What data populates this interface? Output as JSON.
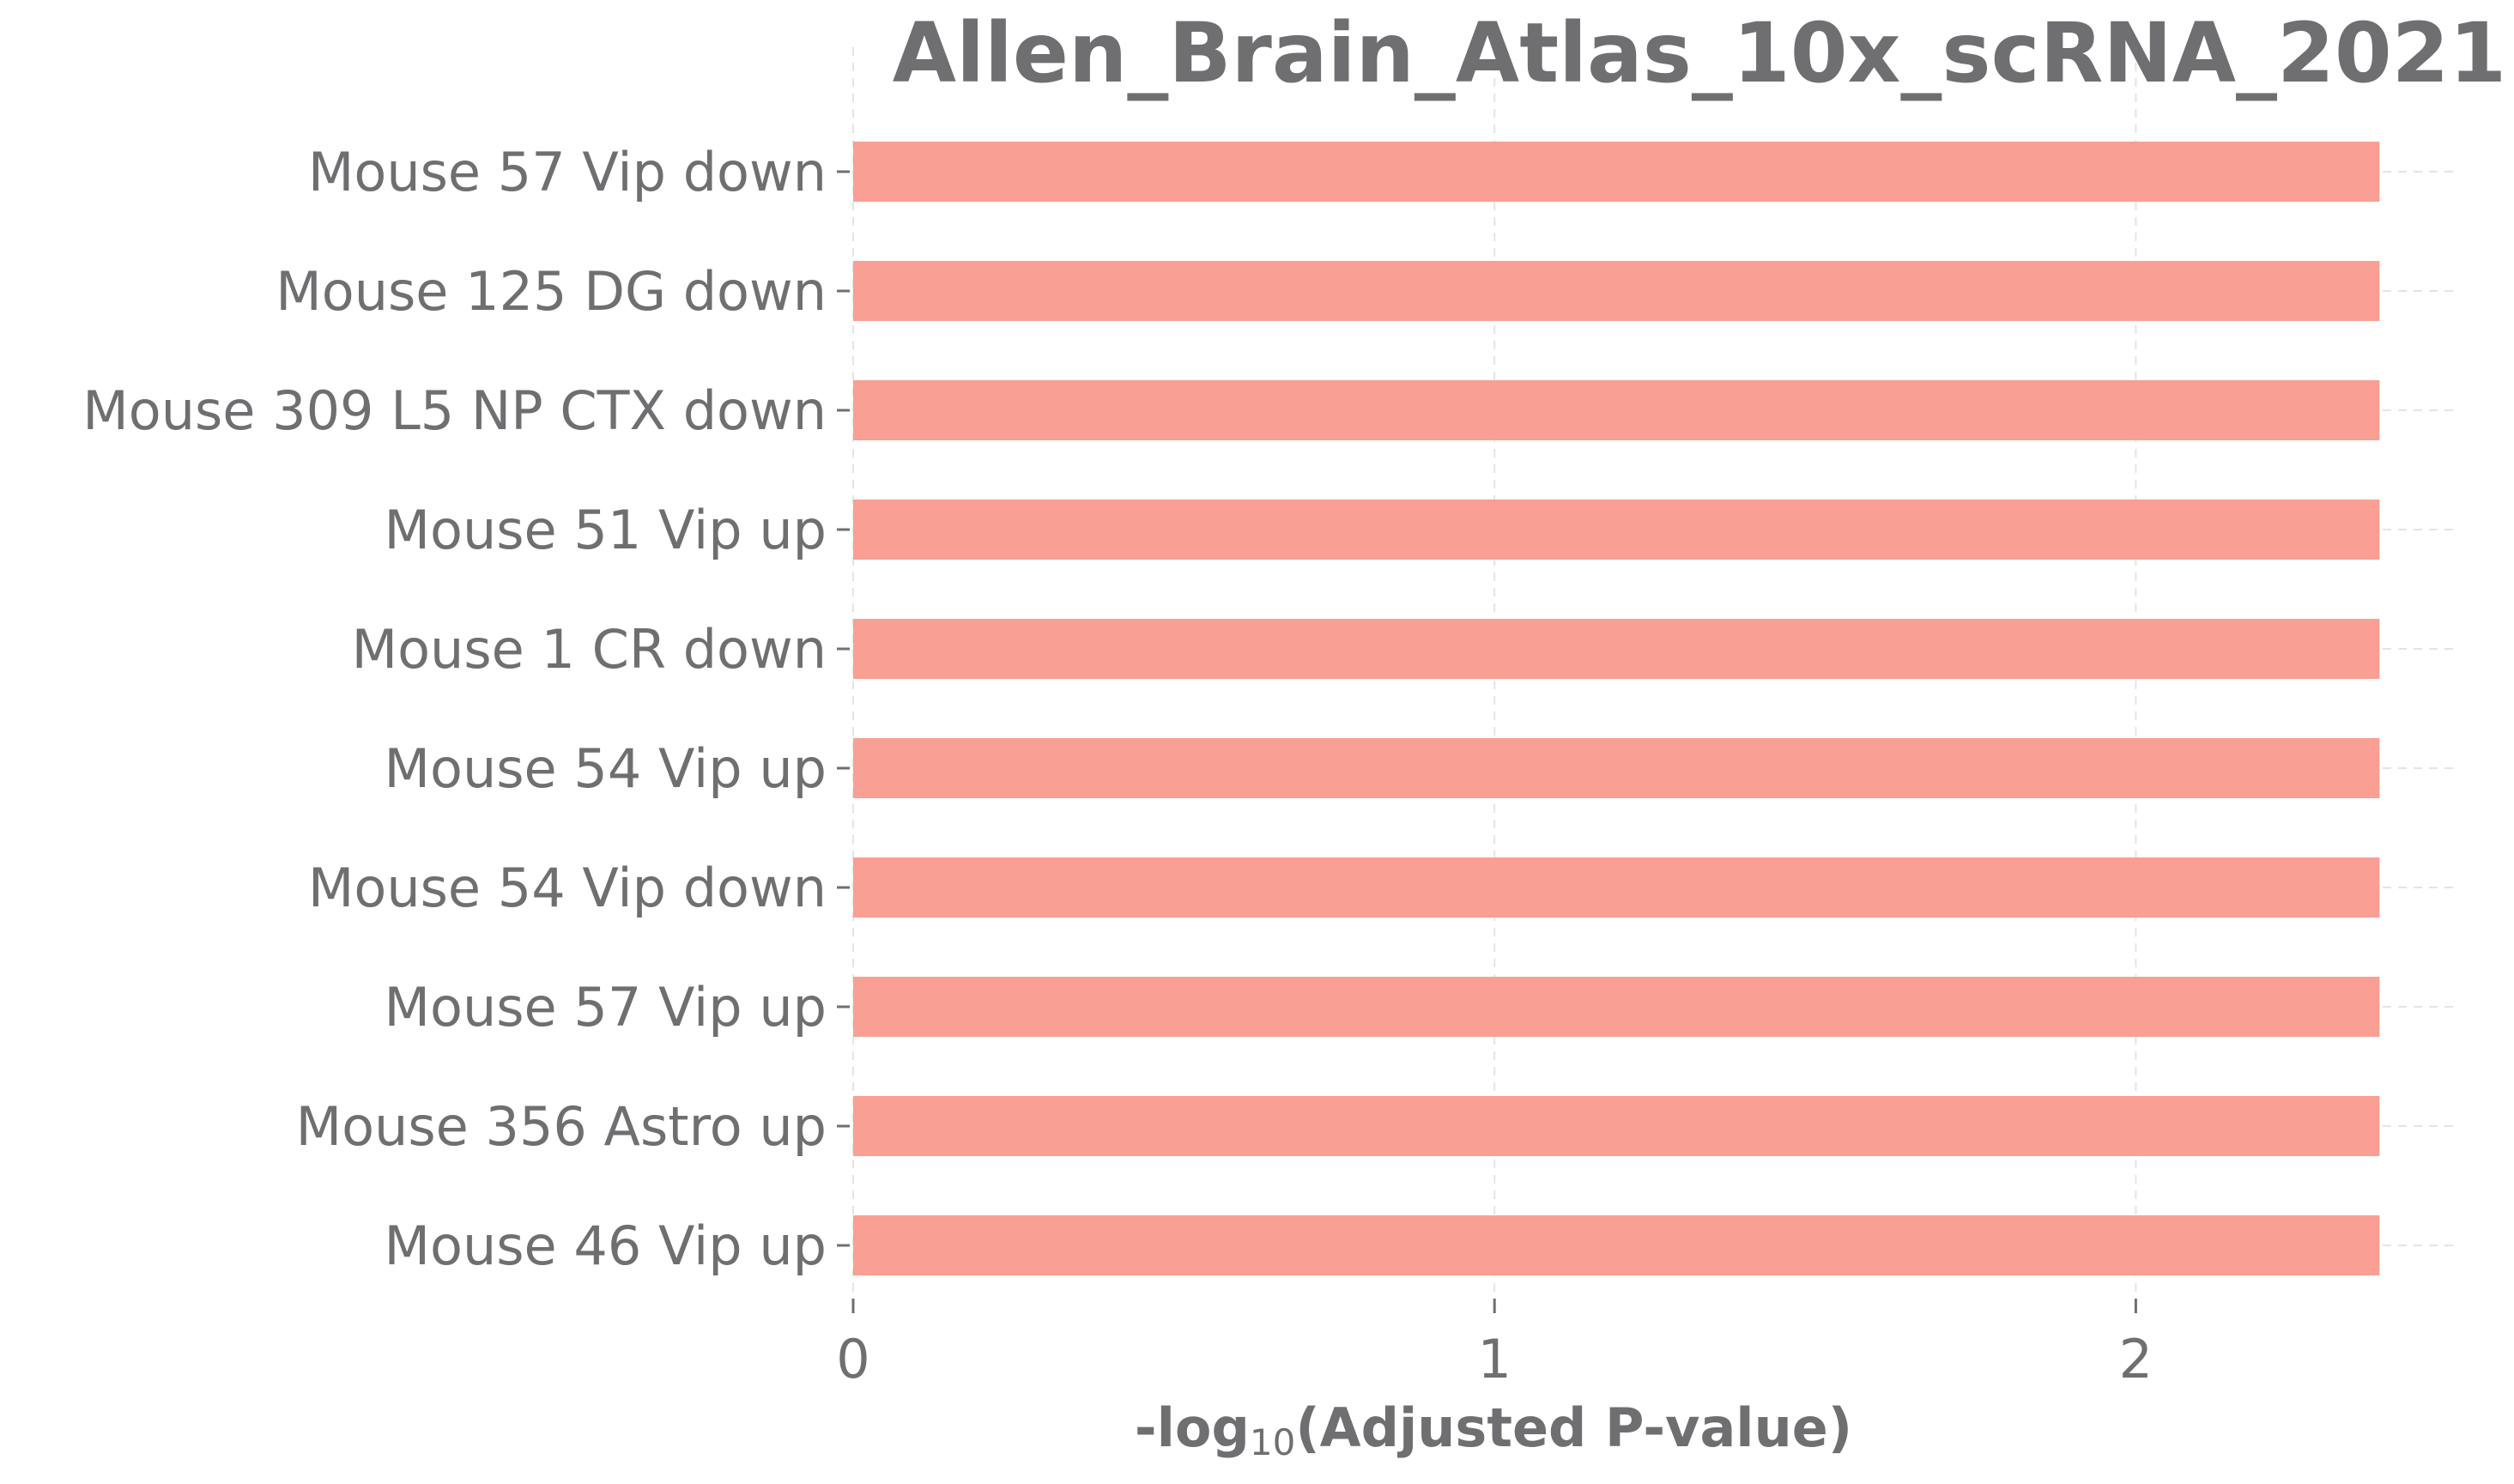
{
  "chart_data": {
    "type": "bar",
    "orientation": "horizontal",
    "title": "Allen_Brain_Atlas_10x_scRNA_2021",
    "xlabel_prefix": "-log",
    "xlabel_subscript": "10",
    "xlabel_suffix": "(Adjusted P-value)",
    "ylabel": "",
    "categories": [
      "Mouse 57 Vip down",
      "Mouse 125 DG down",
      "Mouse 309 L5 NP CTX down",
      "Mouse 51 Vip up",
      "Mouse 1 CR down",
      "Mouse 54 Vip up",
      "Mouse 54 Vip down",
      "Mouse 57 Vip up",
      "Mouse 356 Astro up",
      "Mouse 46 Vip up"
    ],
    "values": [
      2.38,
      2.38,
      2.38,
      2.38,
      2.38,
      2.38,
      2.38,
      2.38,
      2.38,
      2.38
    ],
    "xlim": [
      0,
      2.5
    ],
    "xticks": [
      0,
      1,
      2
    ],
    "xtick_labels": [
      "0",
      "1",
      "2"
    ],
    "grid": true,
    "bar_color": "#f99f94",
    "text_color": "#6f6f72",
    "grid_color": "#e4e4e4"
  }
}
